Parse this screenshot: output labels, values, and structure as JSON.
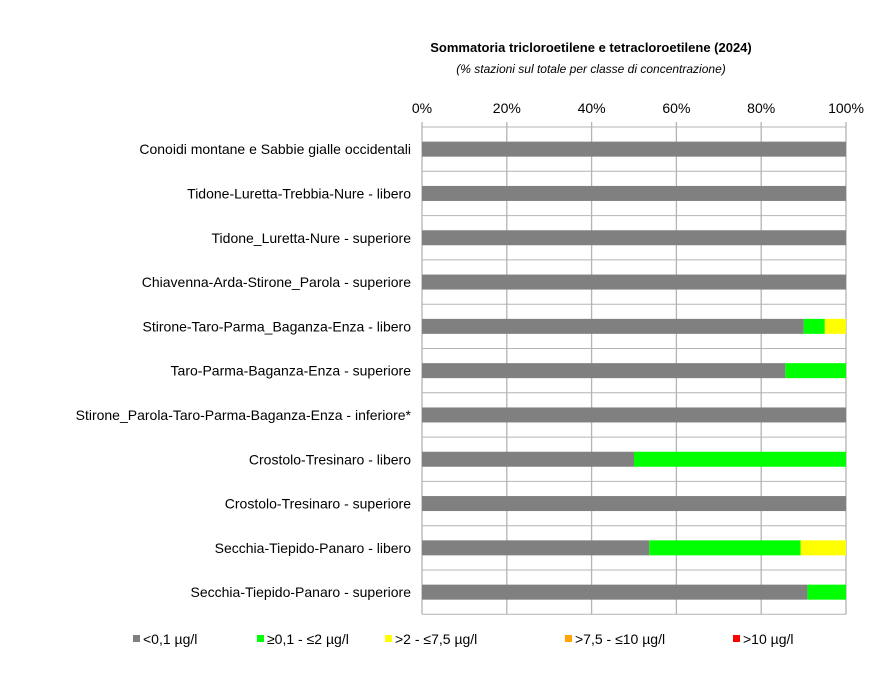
{
  "chart_data": {
    "type": "bar",
    "orientation": "horizontal",
    "stacked": "percent",
    "title": "Sommatoria tricloroetilene e tetracloroetilene (2024)",
    "subtitle": "(% stazioni sul totale per classe di concentrazione)",
    "xlim": [
      0,
      100
    ],
    "xticks": [
      "0%",
      "20%",
      "40%",
      "60%",
      "80%",
      "100%"
    ],
    "grid": true,
    "legend_position": "bottom",
    "categories": [
      "Conoidi montane e Sabbie gialle occidentali",
      "Tidone-Luretta-Trebbia-Nure - libero",
      "Tidone_Luretta-Nure - superiore",
      "Chiavenna-Arda-Stirone_Parola - superiore",
      "Stirone-Taro-Parma_Baganza-Enza - libero",
      "Taro-Parma-Baganza-Enza - superiore",
      "Stirone_Parola-Taro-Parma-Baganza-Enza - inferiore*",
      "Crostolo-Tresinaro - libero",
      "Crostolo-Tresinaro - superiore",
      "Secchia-Tiepido-Panaro - libero",
      "Secchia-Tiepido-Panaro - superiore"
    ],
    "series": [
      {
        "name": "<0,1 µg/l",
        "color": "#808080",
        "values": [
          100,
          100,
          100,
          100,
          90,
          85.7,
          100,
          50,
          100,
          53.6,
          90.9
        ]
      },
      {
        "name": "≥0,1 - ≤2 µg/l",
        "color": "#00ff00",
        "values": [
          0,
          0,
          0,
          0,
          5,
          14.3,
          0,
          50,
          0,
          35.7,
          9.1
        ]
      },
      {
        "name": ">2 - ≤7,5 µg/l",
        "color": "#ffff00",
        "values": [
          0,
          0,
          0,
          0,
          5,
          0,
          0,
          0,
          0,
          10.7,
          0
        ]
      },
      {
        "name": ">7,5 - ≤10 µg/l",
        "color": "#ffa500",
        "values": [
          0,
          0,
          0,
          0,
          0,
          0,
          0,
          0,
          0,
          0,
          0
        ]
      },
      {
        "name": ">10 µg/l",
        "color": "#ff0000",
        "values": [
          0,
          0,
          0,
          0,
          0,
          0,
          0,
          0,
          0,
          0,
          0
        ]
      }
    ]
  }
}
